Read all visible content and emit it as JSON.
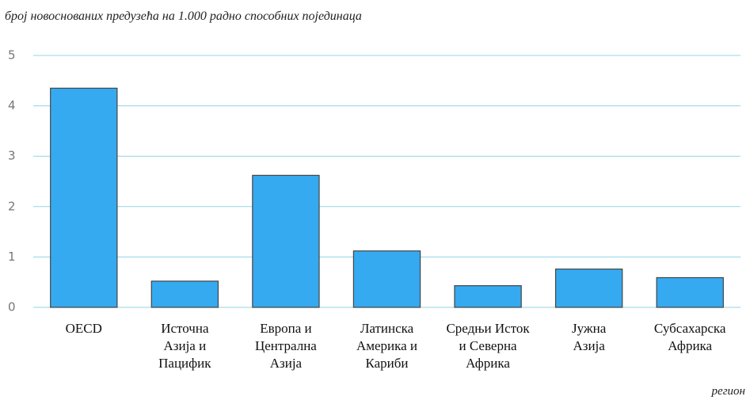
{
  "chart_data": {
    "type": "bar",
    "title": "број новоснованих предузећа на 1.000 радно способних појединаца",
    "x_label": "регион",
    "categories": [
      "OECD",
      "Источна\nАзија и\nПацифик",
      "Европа и\nЦентрална\nАзија",
      "Латинска\nАмерика и\nКариби",
      "Средњи Исток\nи Северна\nАфрика",
      "Јужна\nАзија",
      "Субсахарска\nАфрика"
    ],
    "values": [
      4.35,
      0.52,
      2.62,
      1.12,
      0.43,
      0.76,
      0.59
    ],
    "color": "#35aaf0",
    "ylim": [
      0,
      5
    ],
    "yticks": [
      0,
      1,
      2,
      3,
      4,
      5
    ],
    "grid": true
  }
}
